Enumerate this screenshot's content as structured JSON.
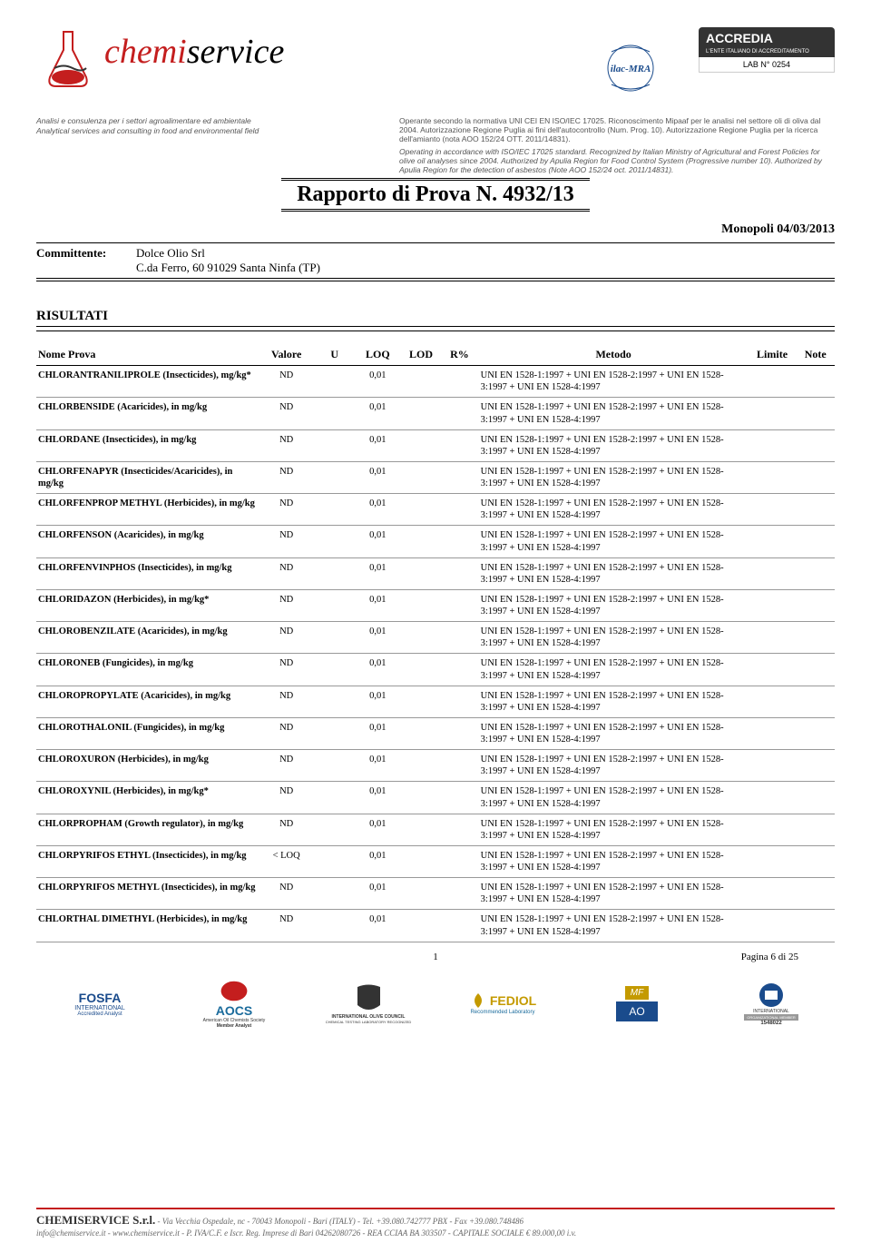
{
  "header": {
    "logo_text_red": "chemi",
    "logo_text_black": "service",
    "subtext_left_line1": "Analisi e consulenza per i settori agroalimentare ed ambientale",
    "subtext_left_line2": "Analytical services and consulting in food and environmental field",
    "subtext_right_line1": "Operante secondo la normativa UNI CEI EN ISO/IEC 17025. Riconoscimento Mipaaf per le analisi nel settore oli di oliva dal 2004. Autorizzazione Regione Puglia ai fini dell'autocontrollo (Num. Prog. 10). Autorizzazione Regione Puglia per la ricerca dell'amianto (nota AOO 152/24 OTT. 2011/14831).",
    "subtext_right_line2": "Operating in accordance with ISO/IEC 17025 standard. Recognized by Italian Ministry of Agricultural and Forest Policies for olive oil analyses since 2004. Authorized by Apulia Region for Food Control System (Progressive number 10). Authorized by Apulia Region for the detection of asbestos (Note AOO 152/24 oct. 2011/14831).",
    "accredia_title": "ACCREDIA",
    "accredia_sub": "L'ENTE ITALIANO DI ACCREDITAMENTO",
    "lab_no": "LAB N° 0254",
    "ilac_label": "ilac-MRA"
  },
  "report_title": "Rapporto di Prova N. 4932/13",
  "monopoli_date": "Monopoli 04/03/2013",
  "committente_label": "Committente:",
  "committente_name": "Dolce Olio Srl",
  "committente_addr": "C.da Ferro, 60  91029  Santa Ninfa (TP)",
  "risultati_heading": "RISULTATI",
  "table": {
    "headers": [
      "Nome Prova",
      "Valore",
      "U",
      "LOQ",
      "LOD",
      "R%",
      "Metodo",
      "Limite",
      "Note"
    ],
    "method_text": "UNI EN 1528-1:1997 + UNI EN 1528-2:1997 + UNI EN 1528-3:1997 + UNI EN 1528-4:1997",
    "rows": [
      {
        "nome": "CHLORANTRANILIPROLE (Insecticides), mg/kg*",
        "val": "ND",
        "loq": "0,01"
      },
      {
        "nome": "CHLORBENSIDE (Acaricides), in mg/kg",
        "val": "ND",
        "loq": "0,01"
      },
      {
        "nome": "CHLORDANE (Insecticides), in mg/kg",
        "val": "ND",
        "loq": "0,01"
      },
      {
        "nome": "CHLORFENAPYR (Insecticides/Acaricides), in mg/kg",
        "val": "ND",
        "loq": "0,01"
      },
      {
        "nome": "CHLORFENPROP METHYL (Herbicides), in mg/kg",
        "val": "ND",
        "loq": "0,01"
      },
      {
        "nome": "CHLORFENSON (Acaricides), in mg/kg",
        "val": "ND",
        "loq": "0,01"
      },
      {
        "nome": "CHLORFENVINPHOS (Insecticides), in mg/kg",
        "val": "ND",
        "loq": "0,01"
      },
      {
        "nome": "CHLORIDAZON (Herbicides), in mg/kg*",
        "val": "ND",
        "loq": "0,01"
      },
      {
        "nome": "CHLOROBENZILATE (Acaricides), in mg/kg",
        "val": "ND",
        "loq": "0,01"
      },
      {
        "nome": "CHLORONEB (Fungicides), in mg/kg",
        "val": "ND",
        "loq": "0,01"
      },
      {
        "nome": "CHLOROPROPYLATE (Acaricides), in mg/kg",
        "val": "ND",
        "loq": "0,01"
      },
      {
        "nome": "CHLOROTHALONIL (Fungicides), in mg/kg",
        "val": "ND",
        "loq": "0,01"
      },
      {
        "nome": "CHLOROXURON (Herbicides), in mg/kg",
        "val": "ND",
        "loq": "0,01"
      },
      {
        "nome": "CHLOROXYNIL (Herbicides), in mg/kg*",
        "val": "ND",
        "loq": "0,01"
      },
      {
        "nome": "CHLORPROPHAM (Growth regulator), in mg/kg",
        "val": "ND",
        "loq": "0,01"
      },
      {
        "nome": "CHLORPYRIFOS ETHYL (Insecticides), in mg/kg",
        "val": "< LOQ",
        "loq": "0,01"
      },
      {
        "nome": "CHLORPYRIFOS METHYL (Insecticides), in mg/kg",
        "val": "ND",
        "loq": "0,01"
      },
      {
        "nome": "CHLORTHAL DIMETHYL (Herbicides), in mg/kg",
        "val": "ND",
        "loq": "0,01"
      }
    ]
  },
  "page_info": "Pagina 6 di 25",
  "page_symbol": "1",
  "footer_logos": {
    "fosfa": "FOSFA",
    "fosfa_sub": "INTERNATIONAL",
    "fosfa_sub2": "Accredited Analyst",
    "aocs": "AOCS",
    "aocs_sub": "American Oil Chemists Society",
    "aocs_sub2": "Member Analyst",
    "ioc": "INTERNATIONAL OLIVE COUNCIL",
    "ioc_sub": "CHEMICAL TESTING LABORATORY RECOGNIZED",
    "fediol": "FEDIOL",
    "fediol_sub": "Recommended Laboratory",
    "mf": "MF",
    "ao": "AO",
    "astm": "ASTM",
    "astm_sub": "INTERNATIONAL",
    "astm_sub2": "ORGANIZATIONAL MEMBER",
    "astm_num": "1548022"
  },
  "footer": {
    "company": "CHEMISERVICE S.r.l.",
    "line1": " - Via Vecchia Ospedale, nc - 70043 Monopoli - Bari (ITALY) - Tel. +39.080.742777 PBX - Fax +39.080.748486",
    "line2": "info@chemiservice.it - www.chemiservice.it - P. IVA/C.F. e Iscr. Reg. Imprese di Bari 04262080726 - REA CCIAA BA 303507 - CAPITALE SOCIALE € 89.000,00 i.v."
  },
  "colors": {
    "brand_red": "#c41e1e",
    "text": "#000000",
    "gray": "#666666"
  }
}
